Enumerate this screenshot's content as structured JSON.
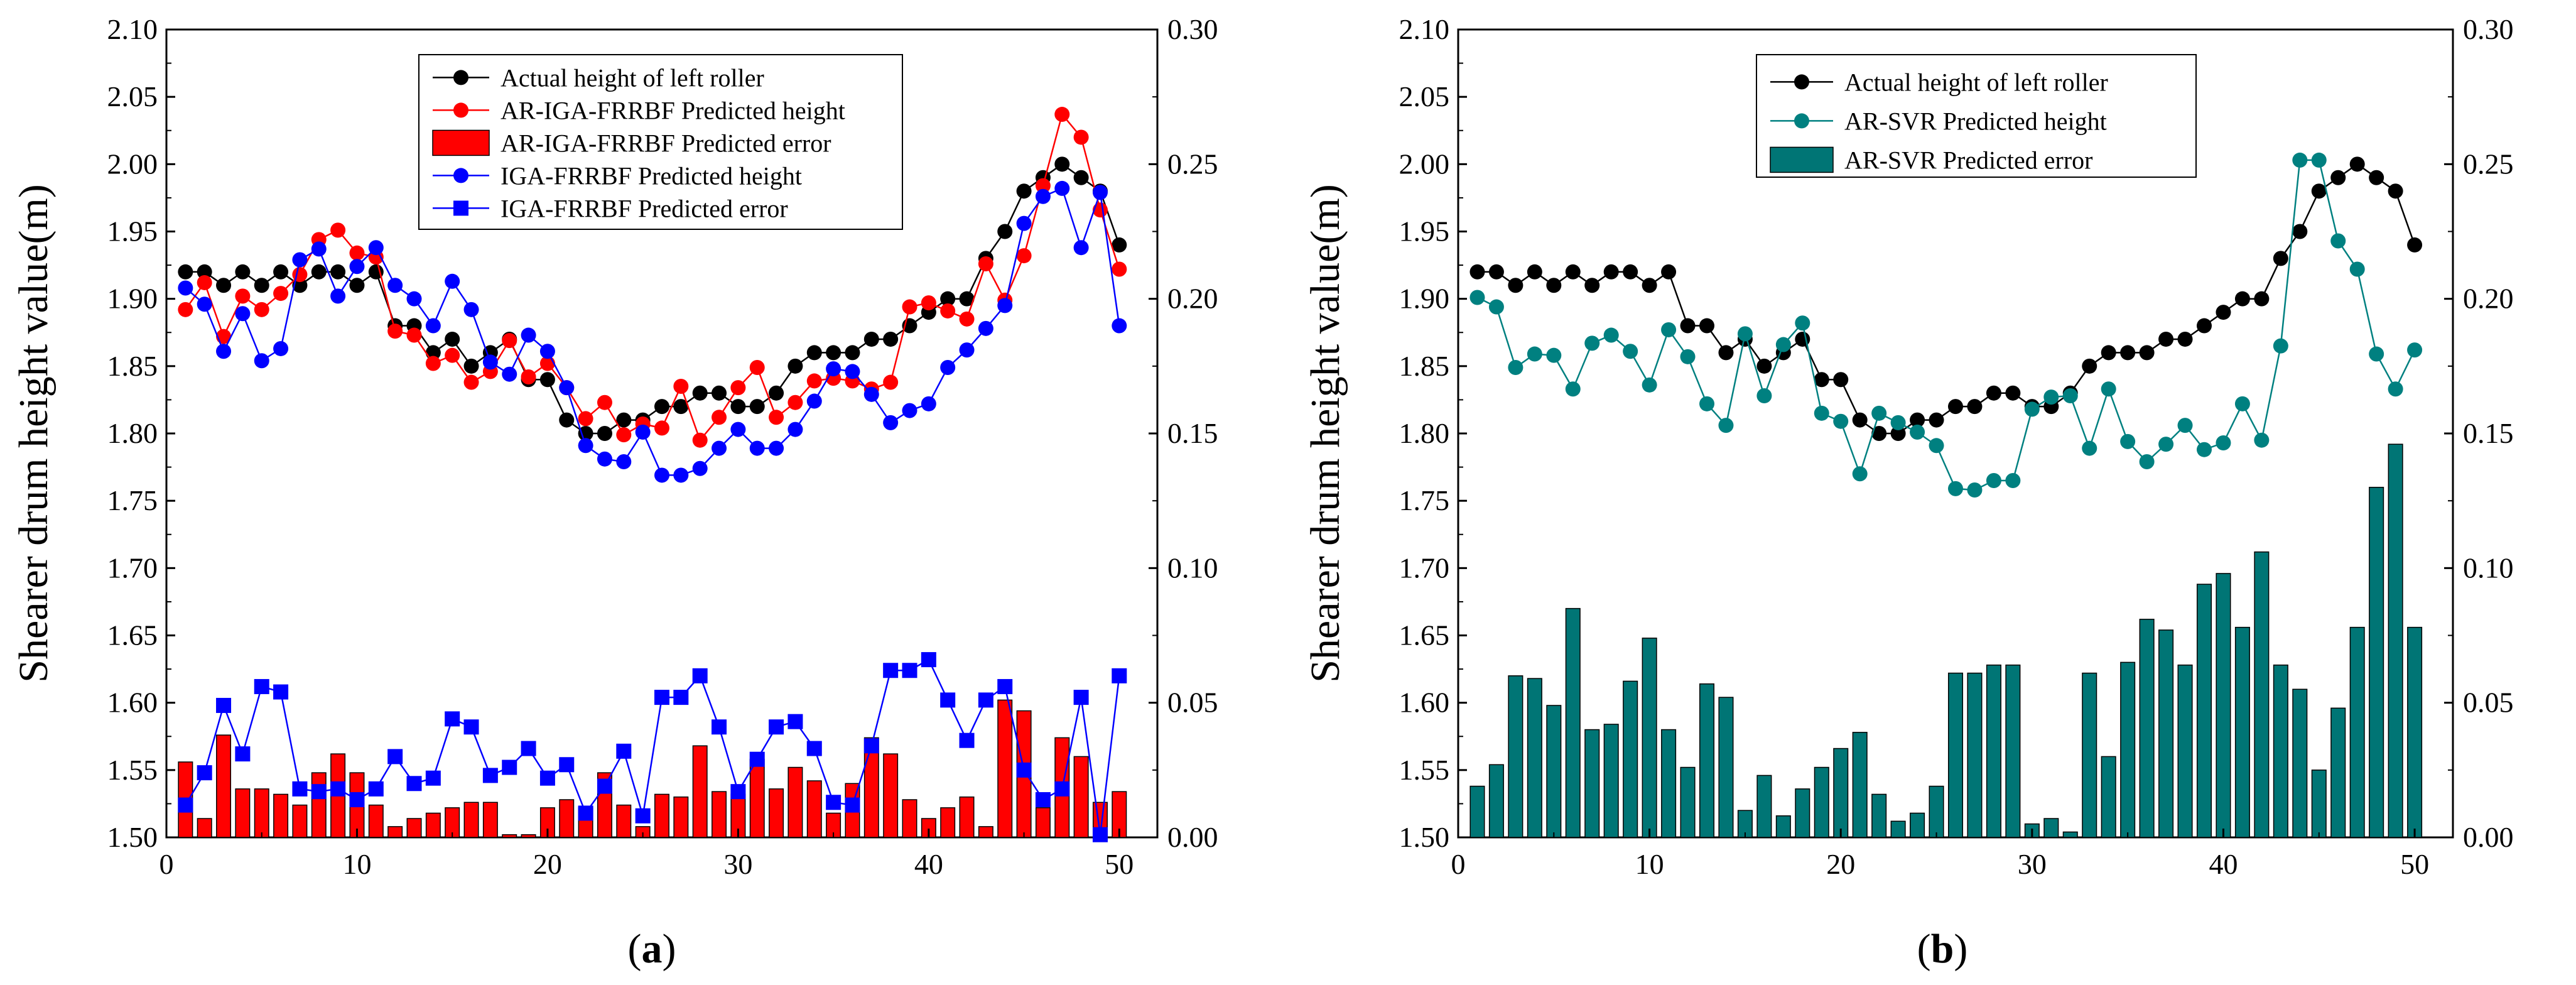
{
  "chart_data": [
    {
      "type": "line",
      "panel_label": "a",
      "ylabel": "Shearer drum height value(m)",
      "xlim": [
        0,
        52
      ],
      "xticks": [
        0,
        10,
        20,
        30,
        40,
        50
      ],
      "ylim": [
        1.5,
        2.1
      ],
      "yticks": [
        "1.50",
        "1.55",
        "1.60",
        "1.65",
        "1.70",
        "1.75",
        "1.80",
        "1.85",
        "1.90",
        "1.95",
        "2.00",
        "2.05",
        "2.10"
      ],
      "y2lim": [
        0.0,
        0.3
      ],
      "y2ticks": [
        "0.00",
        "0.05",
        "0.10",
        "0.15",
        "0.20",
        "0.25",
        "0.30"
      ],
      "grid": false,
      "legend_position": "top-center",
      "x": [
        1,
        2,
        3,
        4,
        5,
        6,
        7,
        8,
        9,
        10,
        11,
        12,
        13,
        14,
        15,
        16,
        17,
        18,
        19,
        20,
        21,
        22,
        23,
        24,
        25,
        26,
        27,
        28,
        29,
        30,
        31,
        32,
        33,
        34,
        35,
        36,
        37,
        38,
        39,
        40,
        41,
        42,
        43,
        44,
        45,
        46,
        47,
        48,
        49,
        50
      ],
      "series": [
        {
          "name": "Actual height of left roller",
          "kind": "line",
          "axis": "left",
          "color": "#000000",
          "marker": "circle",
          "values": [
            1.92,
            1.92,
            1.91,
            1.92,
            1.91,
            1.92,
            1.91,
            1.92,
            1.92,
            1.91,
            1.92,
            1.88,
            1.88,
            1.86,
            1.87,
            1.85,
            1.86,
            1.87,
            1.84,
            1.84,
            1.81,
            1.8,
            1.8,
            1.81,
            1.81,
            1.82,
            1.82,
            1.83,
            1.83,
            1.82,
            1.82,
            1.83,
            1.85,
            1.86,
            1.86,
            1.86,
            1.87,
            1.87,
            1.88,
            1.89,
            1.9,
            1.9,
            1.93,
            1.95,
            1.98,
            1.99,
            2.0,
            1.99,
            1.98,
            1.94
          ]
        },
        {
          "name": "AR-IGA-FRRBF Predicted height",
          "kind": "line",
          "axis": "left",
          "color": "#ff0000",
          "marker": "circle",
          "values": [
            1.892,
            1.912,
            1.872,
            1.902,
            1.892,
            1.904,
            1.918,
            1.944,
            1.951,
            1.934,
            1.931,
            1.876,
            1.873,
            1.852,
            1.858,
            1.838,
            1.846,
            1.869,
            1.842,
            1.852,
            1.834,
            1.811,
            1.823,
            1.799,
            1.807,
            1.804,
            1.835,
            1.795,
            1.812,
            1.834,
            1.849,
            1.812,
            1.823,
            1.839,
            1.841,
            1.839,
            1.833,
            1.838,
            1.894,
            1.897,
            1.891,
            1.885,
            1.926,
            1.899,
            1.932,
            1.984,
            2.037,
            2.02,
            1.966,
            1.922
          ]
        },
        {
          "name": "AR-IGA-FRRBF Predicted error",
          "kind": "bar",
          "axis": "right",
          "color": "#ff0000",
          "values": [
            0.028,
            0.007,
            0.038,
            0.018,
            0.018,
            0.016,
            0.012,
            0.024,
            0.031,
            0.024,
            0.012,
            0.004,
            0.007,
            0.009,
            0.011,
            0.013,
            0.013,
            0.001,
            0.001,
            0.011,
            0.014,
            0.011,
            0.024,
            0.012,
            0.004,
            0.016,
            0.015,
            0.034,
            0.017,
            0.016,
            0.029,
            0.018,
            0.026,
            0.021,
            0.009,
            0.02,
            0.037,
            0.031,
            0.014,
            0.007,
            0.011,
            0.015,
            0.004,
            0.051,
            0.047,
            0.011,
            0.037,
            0.03,
            0.013,
            0.017
          ]
        },
        {
          "name": "IGA-FRRBF Predicted height",
          "kind": "line",
          "axis": "left",
          "color": "#0000ff",
          "marker": "circle",
          "values": [
            1.908,
            1.896,
            1.861,
            1.889,
            1.854,
            1.863,
            1.929,
            1.937,
            1.902,
            1.924,
            1.938,
            1.91,
            1.9,
            1.88,
            1.913,
            1.892,
            1.853,
            1.844,
            1.873,
            1.861,
            1.834,
            1.791,
            1.781,
            1.779,
            1.801,
            1.769,
            1.769,
            1.774,
            1.789,
            1.803,
            1.789,
            1.789,
            1.803,
            1.824,
            1.848,
            1.846,
            1.829,
            1.808,
            1.817,
            1.822,
            1.849,
            1.862,
            1.878,
            1.895,
            1.956,
            1.976,
            1.982,
            1.938,
            1.979,
            1.88
          ]
        },
        {
          "name": "IGA-FRRBF Predicted error",
          "kind": "line",
          "axis": "right",
          "color": "#0000ff",
          "marker": "square",
          "values": [
            0.012,
            0.024,
            0.049,
            0.031,
            0.056,
            0.054,
            0.018,
            0.017,
            0.018,
            0.014,
            0.018,
            0.03,
            0.02,
            0.022,
            0.044,
            0.041,
            0.023,
            0.026,
            0.033,
            0.022,
            0.027,
            0.009,
            0.019,
            0.032,
            0.008,
            0.052,
            0.052,
            0.06,
            0.041,
            0.017,
            0.029,
            0.041,
            0.043,
            0.033,
            0.013,
            0.012,
            0.034,
            0.062,
            0.062,
            0.066,
            0.051,
            0.036,
            0.051,
            0.056,
            0.025,
            0.014,
            0.018,
            0.052,
            0.001,
            0.06
          ]
        }
      ]
    },
    {
      "type": "line",
      "panel_label": "b",
      "ylabel": "Shearer drum height value(m)",
      "xlim": [
        0,
        52
      ],
      "xticks": [
        0,
        10,
        20,
        30,
        40,
        50
      ],
      "ylim": [
        1.5,
        2.1
      ],
      "yticks": [
        "1.50",
        "1.55",
        "1.60",
        "1.65",
        "1.70",
        "1.75",
        "1.80",
        "1.85",
        "1.90",
        "1.95",
        "2.00",
        "2.05",
        "2.10"
      ],
      "y2lim": [
        0.0,
        0.3
      ],
      "y2ticks": [
        "0.00",
        "0.05",
        "0.10",
        "0.15",
        "0.20",
        "0.25",
        "0.30"
      ],
      "grid": false,
      "legend_position": "top-center",
      "x": [
        1,
        2,
        3,
        4,
        5,
        6,
        7,
        8,
        9,
        10,
        11,
        12,
        13,
        14,
        15,
        16,
        17,
        18,
        19,
        20,
        21,
        22,
        23,
        24,
        25,
        26,
        27,
        28,
        29,
        30,
        31,
        32,
        33,
        34,
        35,
        36,
        37,
        38,
        39,
        40,
        41,
        42,
        43,
        44,
        45,
        46,
        47,
        48,
        49,
        50
      ],
      "series": [
        {
          "name": "Actual height of left roller",
          "kind": "line",
          "axis": "left",
          "color": "#000000",
          "marker": "circle",
          "values": [
            1.92,
            1.92,
            1.91,
            1.92,
            1.91,
            1.92,
            1.91,
            1.92,
            1.92,
            1.91,
            1.92,
            1.88,
            1.88,
            1.86,
            1.87,
            1.85,
            1.86,
            1.87,
            1.84,
            1.84,
            1.81,
            1.8,
            1.8,
            1.81,
            1.81,
            1.82,
            1.82,
            1.83,
            1.83,
            1.82,
            1.82,
            1.83,
            1.85,
            1.86,
            1.86,
            1.86,
            1.87,
            1.87,
            1.88,
            1.89,
            1.9,
            1.9,
            1.93,
            1.95,
            1.98,
            1.99,
            2.0,
            1.99,
            1.98,
            1.94
          ]
        },
        {
          "name": "AR-SVR Predicted height",
          "kind": "line",
          "axis": "left",
          "color": "#008080",
          "marker": "circle",
          "values": [
            1.901,
            1.894,
            1.849,
            1.859,
            1.858,
            1.833,
            1.867,
            1.873,
            1.861,
            1.836,
            1.877,
            1.857,
            1.822,
            1.806,
            1.874,
            1.828,
            1.866,
            1.882,
            1.815,
            1.809,
            1.77,
            1.815,
            1.808,
            1.801,
            1.791,
            1.759,
            1.758,
            1.765,
            1.765,
            1.818,
            1.827,
            1.828,
            1.789,
            1.833,
            1.794,
            1.779,
            1.792,
            1.806,
            1.788,
            1.793,
            1.822,
            1.795,
            1.865,
            2.003,
            2.003,
            1.943,
            1.922,
            1.859,
            1.833,
            1.862
          ]
        },
        {
          "name": "AR-SVR Predicted error",
          "kind": "bar",
          "axis": "right",
          "color": "#007575",
          "values": [
            0.019,
            0.027,
            0.06,
            0.059,
            0.049,
            0.085,
            0.04,
            0.042,
            0.058,
            0.074,
            0.04,
            0.026,
            0.057,
            0.052,
            0.01,
            0.023,
            0.008,
            0.018,
            0.026,
            0.033,
            0.039,
            0.016,
            0.006,
            0.009,
            0.019,
            0.061,
            0.061,
            0.064,
            0.064,
            0.005,
            0.007,
            0.002,
            0.061,
            0.03,
            0.065,
            0.081,
            0.077,
            0.064,
            0.094,
            0.098,
            0.078,
            0.106,
            0.064,
            0.055,
            0.025,
            0.048,
            0.078,
            0.13,
            0.146,
            0.078
          ]
        }
      ]
    }
  ]
}
